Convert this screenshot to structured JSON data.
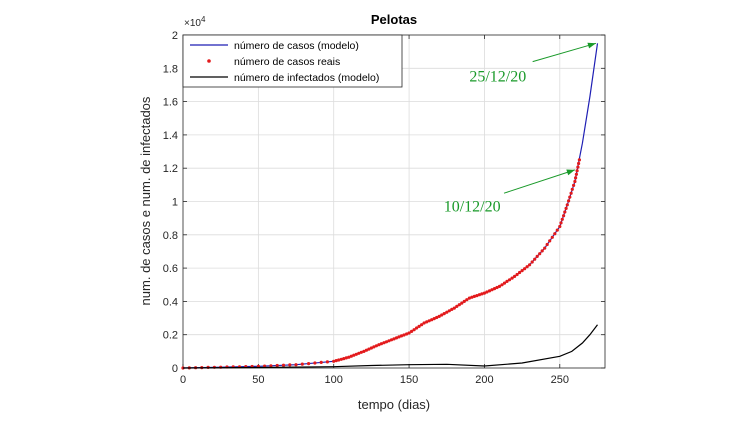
{
  "chart_data": {
    "type": "line",
    "title": "Pelotas",
    "xlabel": "tempo (dias)",
    "ylabel": "num. de casos e num. de infectados",
    "xlim": [
      0,
      280
    ],
    "ylim": [
      0,
      20000
    ],
    "x_ticks": [
      0,
      50,
      100,
      150,
      200,
      250
    ],
    "y_ticks": [
      0,
      2000,
      4000,
      6000,
      8000,
      10000,
      12000,
      14000,
      16000,
      18000,
      20000
    ],
    "y_tick_labels": [
      "0",
      "0.2",
      "0.4",
      "0.6",
      "0.8",
      "1",
      "1.2",
      "1.4",
      "1.6",
      "1.8",
      "2"
    ],
    "y_exponent_base": "×10",
    "y_exponent_power": "4",
    "grid": true,
    "legend_position": "top-left",
    "series": [
      {
        "name": "número de casos (modelo)",
        "style": "line",
        "color": "#1f1fb4",
        "x": [
          0,
          25,
          50,
          75,
          100,
          110,
          120,
          130,
          140,
          150,
          160,
          170,
          180,
          190,
          200,
          210,
          220,
          230,
          240,
          250,
          255,
          260,
          265,
          270,
          275
        ],
        "y": [
          0,
          50,
          100,
          200,
          400,
          650,
          1000,
          1400,
          1750,
          2100,
          2700,
          3100,
          3600,
          4200,
          4500,
          4900,
          5500,
          6200,
          7200,
          8500,
          9800,
          11200,
          13500,
          16300,
          19500
        ]
      },
      {
        "name": "número de casos reais",
        "style": "markers",
        "color": "#e31a1c",
        "x": [
          0,
          25,
          50,
          75,
          100,
          110,
          120,
          130,
          140,
          150,
          160,
          170,
          180,
          190,
          200,
          210,
          220,
          230,
          240,
          250,
          255,
          260,
          263
        ],
        "y": [
          0,
          50,
          100,
          200,
          400,
          650,
          1000,
          1400,
          1750,
          2100,
          2700,
          3100,
          3600,
          4200,
          4500,
          4900,
          5500,
          6200,
          7200,
          8500,
          9800,
          11200,
          12500
        ]
      },
      {
        "name": "número de infectados (modelo)",
        "style": "line",
        "color": "#000000",
        "x": [
          0,
          50,
          100,
          125,
          150,
          175,
          200,
          225,
          250,
          258,
          265,
          270,
          275
        ],
        "y": [
          0,
          30,
          80,
          150,
          200,
          220,
          120,
          300,
          700,
          1000,
          1500,
          2000,
          2600
        ]
      }
    ],
    "annotations": [
      {
        "text": "25/12/20",
        "color": "#1a9a2a",
        "text_x": 190,
        "text_y": 17200,
        "arrow_from_x": 232,
        "arrow_from_y": 18400,
        "arrow_to_x": 274,
        "arrow_to_y": 19500
      },
      {
        "text": "10/12/20",
        "color": "#1a9a2a",
        "text_x": 173,
        "text_y": 9400,
        "arrow_from_x": 213,
        "arrow_from_y": 10500,
        "arrow_to_x": 260,
        "arrow_to_y": 11900
      }
    ]
  }
}
